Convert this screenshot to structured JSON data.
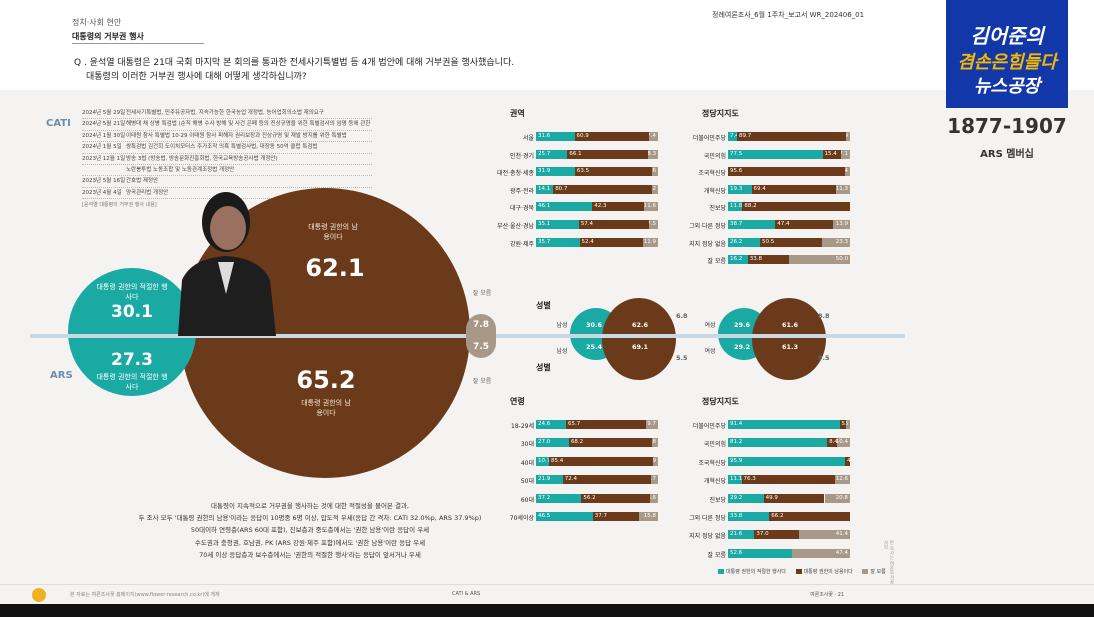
{
  "header": {
    "section": "정치·사회 현안",
    "title": "대통령의 거부권 행사",
    "report_id": "정례여론조사_6월 1주차_보고서   WR_202406_01",
    "question_l1": "Q . 윤석열 대통령은 21대 국회 마지막 본 회의를 통과한 전세사기특별법 등 4개 법안에 대해 거부권을 행사했습니다.",
    "question_l2": "대통령의 이러한 거부권 행사에 대해 어떻게 생각하십니까?"
  },
  "logo": {
    "line1": "김어준의",
    "line2": "겸손은힘들다",
    "line3": "뉴스공장",
    "years": "1877-1907",
    "sub": "ARS 멤버십"
  },
  "labels": {
    "cati": "CATI",
    "ars": "ARS"
  },
  "timeline": [
    {
      "date": "2024년 5월 29일",
      "text": "전세사기특별법, 민주유공자법, 지속가능한 한국농업 개정법, 농어업회의소법 재의요구"
    },
    {
      "date": "2024년 5월 21일",
      "text": "해병대 채 상병 특검법 (순직 해병 수사 방해 및 사건 은폐 등의 진상규명을 위한 특별검사의 임명 등에 관한 법률)"
    },
    {
      "date": "2024년 1월 30일",
      "text": "이태원 참사 특별법 10·29 이태원 참사 피해자 권리보장과 진상규명 및 재발 방지를 위한 특별법"
    },
    {
      "date": "2024년 1월 5일",
      "text": "쌍특검법 김건희 도이치모터스 주가조작 의혹 특별검사법, 대장동 50억 클럽 특검법"
    },
    {
      "date": "2023년 12월 1일",
      "text": "방송 3법 (방송법, 방송문화진흥회법, 한국교육방송공사법 개정안)"
    },
    {
      "date": "",
      "text": "노란봉투법 노동조합 및 노동관계조정법 개정안"
    },
    {
      "date": "2023년 5월 16일",
      "text": "간호법 제정안"
    },
    {
      "date": "2023년 4월 4일",
      "text": "양곡관리법 개정안"
    }
  ],
  "timeline_note": "[윤석열 대통령의 거부권 행사 내용]",
  "main": {
    "cati_proper": {
      "label": "대통령 권한의 적절한 행사다",
      "value": "30.1"
    },
    "cati_abuse": {
      "label": "대통령 권한의 남용이다",
      "value": "62.1"
    },
    "ars_proper": {
      "label": "대통령 권한의 적절한 행사다",
      "value": "27.3"
    },
    "ars_abuse": {
      "label": "대통령 권한의 남용이다",
      "value": "65.2"
    },
    "dk_label_top": "잘 모름",
    "dk_top": "7.8",
    "dk_bottom": "7.5",
    "dk_label_bottom": "잘 모름"
  },
  "summary": [
    "대통령이 지속적으로 거부권을 행사하는 것에 대한 적절성을 물어본 결과,",
    "두 조사 모두 '대통령 권한의 남용'이라는 응답이 10명중 6명 이상, 압도적 우세(응답 간 격차: CATI 32.0%p, ARS 37.9%p)",
    "50대이하 연령층(ARS 60대 포함), 진보층과 중도층에서는 '권한 남용'이란 응답이 우세",
    "수도권과 충청권, 호남권, PK (ARS 강원·제주 포함)에서도 '권한 남용'이란 응답 우세",
    "70세 이상 응답층과 보수층에서는 '권한의 적절한 행사'라는 응답이 앞서거나 우세"
  ],
  "footer": {
    "left": "본 자료는 여론조사꽃 홈페이지(www.flower-research.co.kr)에 게재",
    "center": "CATI & ARS",
    "right": "여론조사꽃 · 21"
  },
  "colors": {
    "teal": "#1ba9a4",
    "brown": "#6b3a1a",
    "gray": "#a89888"
  },
  "chart_data": [
    {
      "type": "bar",
      "title": "권역",
      "categories": [
        "서울",
        "인천·경기",
        "대전·충청·세종",
        "광주·전라",
        "대구·경북",
        "부산·울산·경남",
        "강원·제주"
      ],
      "series": [
        {
          "values": [
            31.6,
            25.7,
            31.9,
            14.1,
            46.1,
            35.1,
            35.7
          ]
        },
        {
          "values": [
            60.9,
            66.1,
            63.5,
            80.7,
            42.3,
            57.4,
            52.4
          ]
        },
        {
          "values": [
            7.4,
            8.3,
            4.6,
            5.2,
            11.6,
            7.5,
            11.9
          ]
        }
      ]
    },
    {
      "type": "bar",
      "title": "정당지지도",
      "categories": [
        "더불어민주당",
        "국민의힘",
        "조국혁신당",
        "개혁신당",
        "진보당",
        "그외 다른 정당",
        "지지 정당 없음",
        "잘 모름"
      ],
      "series": [
        {
          "values": [
            7.4,
            77.5,
            0,
            19.3,
            11.8,
            38.7,
            26.2,
            16.2
          ]
        },
        {
          "values": [
            89.7,
            15.4,
            95.6,
            69.4,
            88.2,
            47.4,
            50.5,
            33.8
          ]
        },
        {
          "values": [
            2.9,
            7.1,
            4.4,
            11.3,
            0,
            13.9,
            23.3,
            50.0
          ]
        }
      ]
    },
    {
      "type": "bar",
      "title": "성별",
      "categories": [
        "남성",
        "남성"
      ],
      "series": [
        {
          "values": [
            30.6,
            25.4
          ]
        },
        {
          "values": [
            62.6,
            69.1
          ]
        },
        {
          "values": [
            6.8,
            5.5
          ]
        }
      ]
    },
    {
      "type": "bar",
      "title": "성별",
      "categories": [
        "여성",
        "여성"
      ],
      "series": [
        {
          "values": [
            29.6,
            29.2
          ]
        },
        {
          "values": [
            61.6,
            61.3
          ]
        },
        {
          "values": [
            8.8,
            9.5
          ]
        }
      ]
    },
    {
      "type": "bar",
      "title": "연령",
      "categories": [
        "18-29세",
        "30대",
        "40대",
        "50대",
        "60대",
        "70세이상"
      ],
      "series": [
        {
          "values": [
            24.6,
            27.0,
            10.7,
            21.9,
            37.2,
            46.5
          ]
        },
        {
          "values": [
            65.7,
            68.2,
            85.4,
            72.4,
            56.2,
            37.7
          ]
        },
        {
          "values": [
            9.7,
            4.8,
            3.9,
            5.7,
            6.6,
            15.8
          ]
        }
      ]
    },
    {
      "type": "bar",
      "title": "정당지지도",
      "categories": [
        "더불어민주당",
        "국민의힘",
        "조국혁신당",
        "개혁신당",
        "진보당",
        "그외 다른 정당",
        "지지 정당 없음",
        "잘 모름"
      ],
      "series": [
        {
          "values": [
            91.4,
            81.2,
            95.9,
            11.1,
            29.2,
            33.8,
            21.6,
            52.6
          ]
        },
        {
          "values": [
            5.0,
            8.4,
            4.1,
            76.3,
            49.9,
            66.2,
            37.0,
            0
          ]
        },
        {
          "values": [
            3.6,
            10.4,
            0,
            12.6,
            20.8,
            0,
            41.4,
            47.4
          ]
        }
      ]
    }
  ],
  "bar_labels": {
    "region_title": "권역",
    "party_title": "정당지지도",
    "gender_title": "성별",
    "age_title": "연령",
    "male": "남성",
    "female": "여성"
  },
  "legend": [
    "대통령 권한의 적절한 행사다",
    "대통령 권한의 남용이다",
    "잘 모름"
  ],
  "side_note": "본 조사는 여론조사꽃 자체 조사임"
}
